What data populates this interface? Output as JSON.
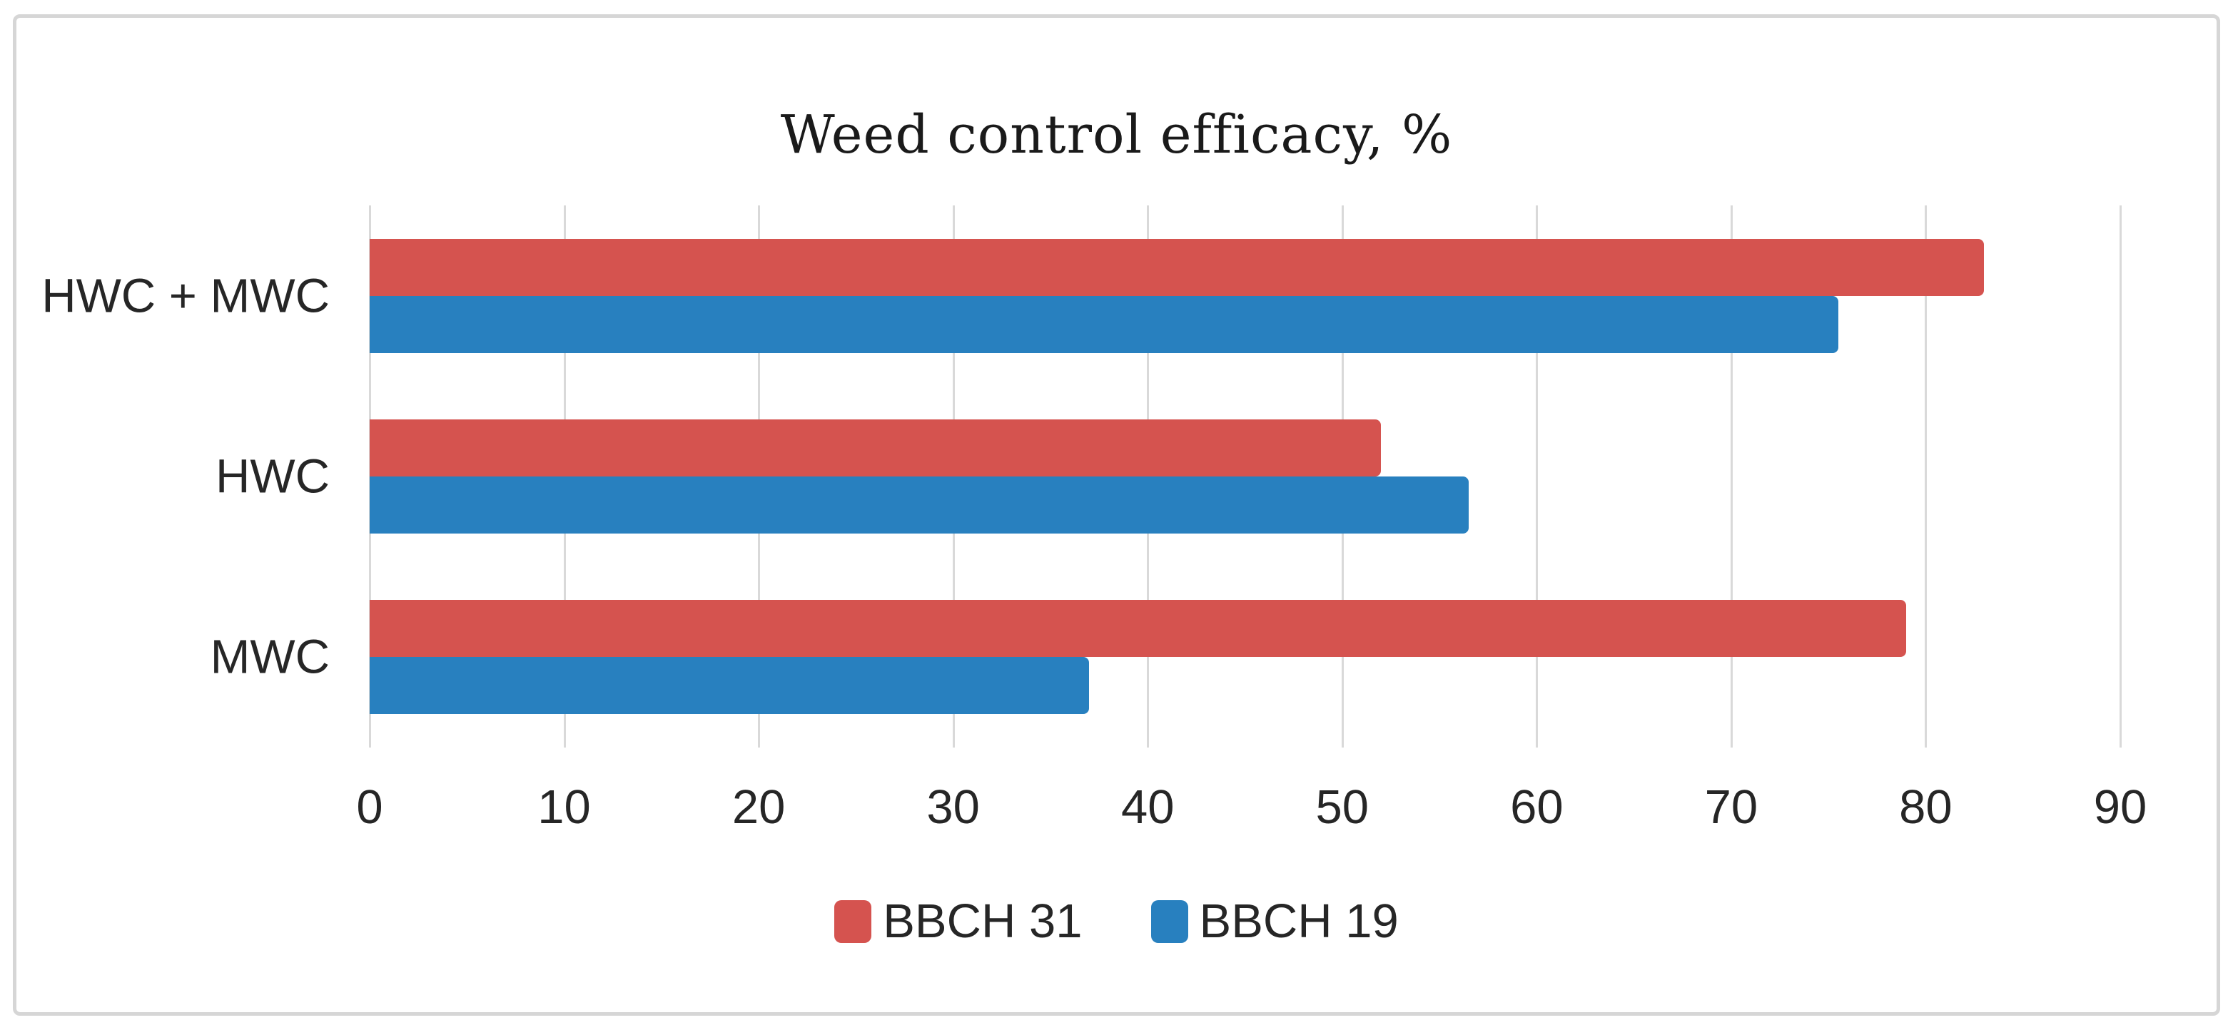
{
  "chart_data": {
    "type": "bar",
    "orientation": "horizontal",
    "title": "Weed control efficacy, %",
    "categories": [
      "HWC + MWC",
      "HWC",
      "MWC"
    ],
    "series": [
      {
        "name": "BBCH 31",
        "color": "#d5534f",
        "values": [
          83,
          52,
          79
        ]
      },
      {
        "name": "BBCH 19",
        "color": "#2880bf",
        "values": [
          75.5,
          56.5,
          37
        ]
      }
    ],
    "xlim": [
      0,
      90
    ],
    "xticks": [
      0,
      10,
      20,
      30,
      40,
      50,
      60,
      70,
      80,
      90
    ],
    "xtick_labels": [
      "0",
      "10",
      "20",
      "30",
      "40",
      "50",
      "60",
      "70",
      "80",
      "90"
    ],
    "grid": "vertical-gridlines",
    "gridline_color": "#d9d9d9",
    "frame_border_color": "#d6d6d6",
    "text_color": "#262626",
    "legend_position": "bottom"
  }
}
